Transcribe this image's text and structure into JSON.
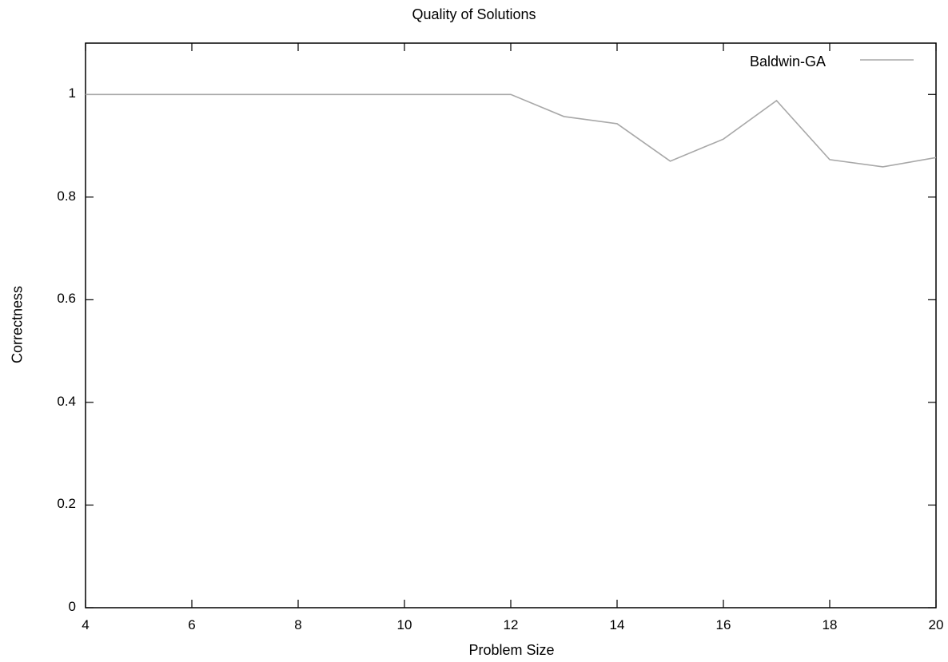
{
  "chart_data": {
    "type": "line",
    "title": "Quality of Solutions",
    "xlabel": "Problem Size",
    "ylabel": "Correctness",
    "xlim": [
      4,
      20
    ],
    "ylim": [
      0,
      1.1
    ],
    "xticks": [
      "4",
      "6",
      "8",
      "10",
      "12",
      "14",
      "16",
      "18",
      "20"
    ],
    "yticks": [
      "0",
      "0.2",
      "0.4",
      "0.6",
      "0.8",
      "1"
    ],
    "grid": false,
    "legend_position": "top-right",
    "series": [
      {
        "name": "Baldwin-GA",
        "color": "#a8a8a8",
        "x": [
          4,
          5,
          6,
          7,
          8,
          9,
          10,
          11,
          12,
          13,
          14,
          15,
          16,
          17,
          18,
          19,
          20
        ],
        "y": [
          1,
          1,
          1,
          1,
          1,
          1,
          1,
          1,
          1,
          0.957,
          0.943,
          0.87,
          0.913,
          0.988,
          0.873,
          0.859,
          0.877
        ]
      }
    ]
  }
}
